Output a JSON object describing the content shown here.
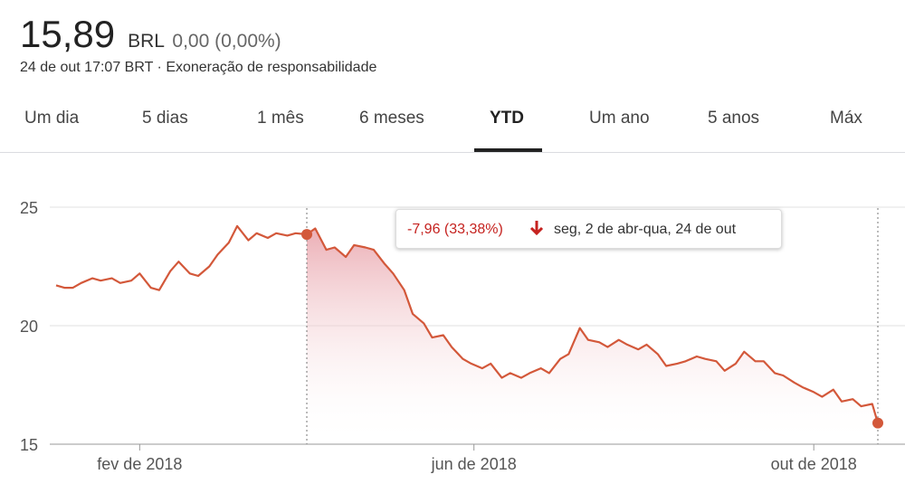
{
  "header": {
    "price": "15,89",
    "currency": "BRL",
    "change": "0,00 (0,00%)",
    "timestamp": "24 de out 17:07 BRT",
    "separator": "·",
    "disclaimer": "Exoneração de responsabilidade"
  },
  "tabs": [
    {
      "label": "Um dia"
    },
    {
      "label": "5 dias"
    },
    {
      "label": "1 mês"
    },
    {
      "label": "6 meses"
    },
    {
      "label": "YTD",
      "active": true
    },
    {
      "label": "Um ano"
    },
    {
      "label": "5 anos"
    },
    {
      "label": "Máx"
    }
  ],
  "tooltip": {
    "change": "-7,96 (33,38%)",
    "range": "seg, 2 de abr-qua, 24 de out"
  },
  "colors": {
    "line": "#d3583a",
    "fill_top": "#e8a0a8",
    "negative": "#c5221f",
    "grid": "#e0e0e0"
  },
  "chart_data": {
    "type": "line",
    "y_ticks": [
      "25",
      "20",
      "15"
    ],
    "x_tick_labels": [
      "fev de 2018",
      "jun de 2018",
      "out de 2018"
    ],
    "x_tick_dates": [
      "2018-02-01",
      "2018-06-01",
      "2018-10-01"
    ],
    "ylim": [
      15,
      25.8
    ],
    "xlim": [
      "2018-01-02",
      "2018-10-24"
    ],
    "selection": {
      "start": "2018-04-02",
      "end": "2018-10-24",
      "start_value": 23.85,
      "end_value": 15.89
    },
    "series": [
      {
        "x": [
          "2018-01-02",
          "2018-01-05",
          "2018-01-08",
          "2018-01-11",
          "2018-01-15",
          "2018-01-18",
          "2018-01-22",
          "2018-01-25",
          "2018-01-29",
          "2018-02-01",
          "2018-02-05",
          "2018-02-08",
          "2018-02-12",
          "2018-02-15",
          "2018-02-19",
          "2018-02-22",
          "2018-02-26",
          "2018-03-01",
          "2018-03-05",
          "2018-03-08",
          "2018-03-12",
          "2018-03-15",
          "2018-03-19",
          "2018-03-22",
          "2018-03-26",
          "2018-03-29",
          "2018-04-02",
          "2018-04-05",
          "2018-04-09",
          "2018-04-12",
          "2018-04-16",
          "2018-04-19",
          "2018-04-23",
          "2018-04-26",
          "2018-04-30",
          "2018-05-03",
          "2018-05-07",
          "2018-05-10",
          "2018-05-14",
          "2018-05-17",
          "2018-05-21",
          "2018-05-24",
          "2018-05-28",
          "2018-05-31",
          "2018-06-04",
          "2018-06-07",
          "2018-06-11",
          "2018-06-14",
          "2018-06-18",
          "2018-06-21",
          "2018-06-25",
          "2018-06-28",
          "2018-07-02",
          "2018-07-05",
          "2018-07-09",
          "2018-07-12",
          "2018-07-16",
          "2018-07-19",
          "2018-07-23",
          "2018-07-26",
          "2018-07-30",
          "2018-08-02",
          "2018-08-06",
          "2018-08-09",
          "2018-08-13",
          "2018-08-16",
          "2018-08-20",
          "2018-08-23",
          "2018-08-27",
          "2018-08-30",
          "2018-09-03",
          "2018-09-06",
          "2018-09-10",
          "2018-09-13",
          "2018-09-17",
          "2018-09-20",
          "2018-09-24",
          "2018-09-27",
          "2018-10-01",
          "2018-10-04",
          "2018-10-08",
          "2018-10-11",
          "2018-10-15",
          "2018-10-18",
          "2018-10-22",
          "2018-10-24"
        ],
        "values": [
          21.7,
          21.6,
          21.6,
          21.8,
          22.0,
          21.9,
          22.0,
          21.8,
          21.9,
          22.2,
          21.6,
          21.5,
          22.3,
          22.7,
          22.2,
          22.1,
          22.5,
          23.0,
          23.5,
          24.2,
          23.6,
          23.9,
          23.7,
          23.9,
          23.8,
          23.9,
          23.85,
          24.1,
          23.2,
          23.3,
          22.9,
          23.4,
          23.3,
          23.2,
          22.6,
          22.2,
          21.5,
          20.5,
          20.1,
          19.5,
          19.6,
          19.1,
          18.6,
          18.4,
          18.2,
          18.4,
          17.8,
          18.0,
          17.8,
          18.0,
          18.2,
          18.0,
          18.6,
          18.8,
          19.9,
          19.4,
          19.3,
          19.1,
          19.4,
          19.2,
          19.0,
          19.2,
          18.8,
          18.3,
          18.4,
          18.5,
          18.7,
          18.6,
          18.5,
          18.1,
          18.4,
          18.9,
          18.5,
          18.5,
          18.0,
          17.9,
          17.6,
          17.4,
          17.2,
          17.0,
          17.3,
          16.8,
          16.9,
          16.6,
          16.7,
          15.89
        ]
      }
    ]
  }
}
